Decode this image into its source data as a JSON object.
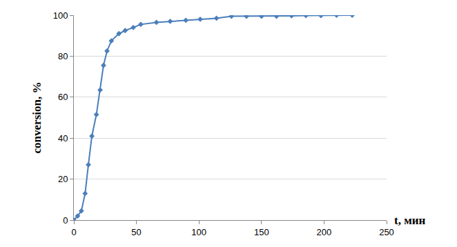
{
  "chart_data": {
    "type": "line",
    "x_label": "t, мин",
    "y_label": "conversion, %",
    "x": [
      0,
      3,
      6,
      9,
      11.6,
      14.4,
      18,
      21,
      23.7,
      26.5,
      30,
      36,
      41,
      47.5,
      53.5,
      66,
      77,
      89.5,
      101,
      114,
      126,
      138,
      150,
      162,
      174,
      185.5,
      197.5,
      210,
      222.5
    ],
    "series": [
      {
        "color": "#4a7ebb",
        "marker": "diamond",
        "line_style": "solid",
        "values": [
          0,
          2,
          4.5,
          13,
          27,
          41,
          51.5,
          63.5,
          75.5,
          82.5,
          87.5,
          91,
          92.5,
          94,
          95.5,
          96.5,
          97,
          97.5,
          98,
          98.5,
          99.5,
          99.5,
          99.5,
          99.5,
          99.7,
          99.8,
          99.8,
          100,
          100
        ]
      }
    ],
    "xlim": [
      0,
      250
    ],
    "xticks": [
      0,
      50,
      100,
      150,
      200,
      250
    ],
    "ylim": [
      0,
      100
    ],
    "yticks": [
      0,
      20,
      40,
      60,
      80,
      100
    ],
    "grid": true
  }
}
